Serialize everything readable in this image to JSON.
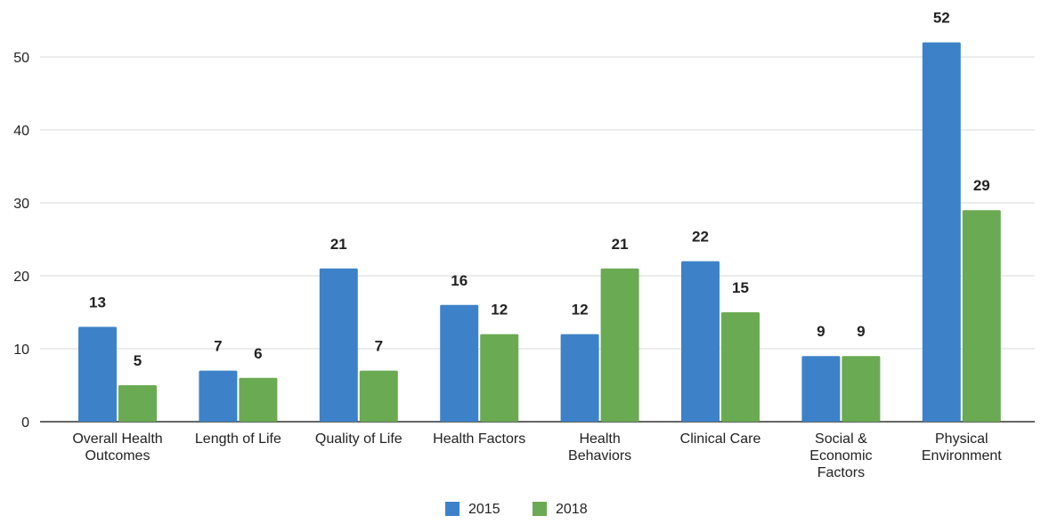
{
  "chart_data": {
    "type": "bar",
    "title": "",
    "xlabel": "",
    "ylabel": "",
    "ylim": [
      0,
      55
    ],
    "yticks": [
      0,
      10,
      20,
      30,
      40,
      50
    ],
    "grid": true,
    "legend_position": "bottom",
    "categories": [
      [
        "Overall Health",
        "Outcomes"
      ],
      [
        "Length of Life"
      ],
      [
        "Quality of Life"
      ],
      [
        "Health Factors"
      ],
      [
        "Health",
        "Behaviors"
      ],
      [
        "Clinical Care"
      ],
      [
        "Social &",
        "Economic",
        "Factors"
      ],
      [
        "Physical",
        "Environment"
      ]
    ],
    "series": [
      {
        "name": "2015",
        "color": "#3d82c8",
        "values": [
          13,
          7,
          21,
          16,
          12,
          22,
          9,
          52
        ]
      },
      {
        "name": "2018",
        "color": "#6aaa52",
        "values": [
          5,
          6,
          7,
          12,
          21,
          15,
          9,
          29
        ]
      }
    ]
  }
}
